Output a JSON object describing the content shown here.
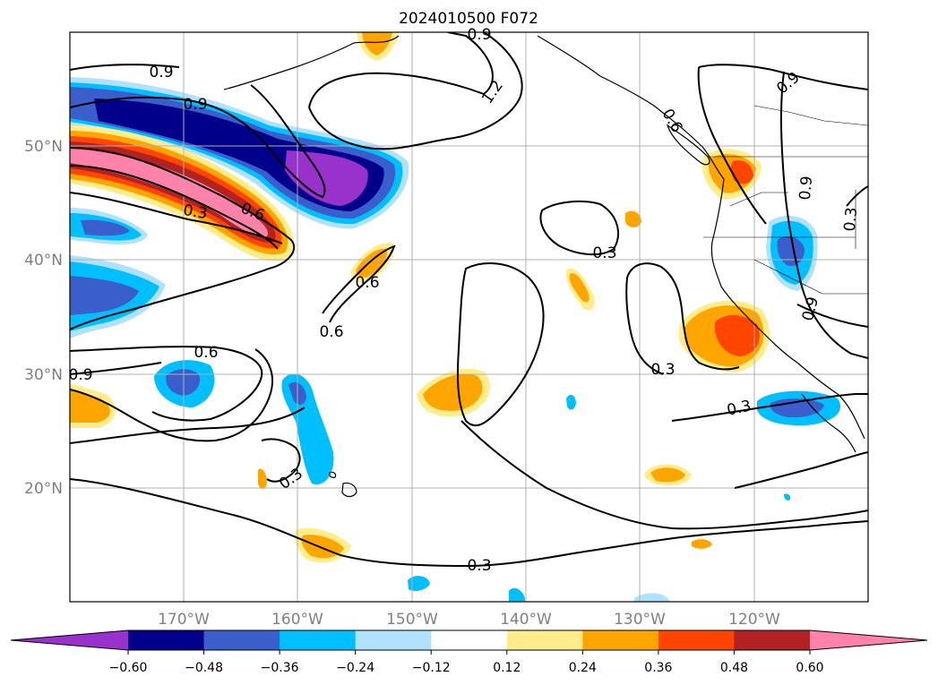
{
  "title": "2024010500 F072",
  "map": {
    "lat_labels": [
      "50°N",
      "40°N",
      "30°N",
      "20°N"
    ],
    "lon_labels": [
      "170°W",
      "160°W",
      "150°W",
      "140°W",
      "130°W",
      "120°W"
    ],
    "extent": {
      "lon": [
        -180,
        -110
      ],
      "lat": [
        10,
        60
      ]
    },
    "gridlines": true,
    "contour_labels": [
      "0.9",
      "0.9",
      "1.2",
      "0.9",
      "0.6",
      "0.3",
      "0.6",
      "0.6",
      "0.6",
      "0.6",
      "0.9",
      "0.3",
      "0.3",
      "0.3",
      "0.3",
      "0.3",
      "0.9",
      "0.9",
      "0.9",
      "0.3"
    ]
  },
  "colorbar": {
    "ticks": [
      "−0.60",
      "−0.48",
      "−0.36",
      "−0.24",
      "−0.12",
      "0.12",
      "0.24",
      "0.36",
      "0.48",
      "0.60"
    ],
    "colors": [
      "#9932cc",
      "#00008b",
      "#3a5fcd",
      "#00bfff",
      "#b0e2ff",
      "#ffffff",
      "#ffec8b",
      "#ffa500",
      "#ff4500",
      "#b22222",
      "#ff82ab"
    ]
  },
  "colors": {
    "purple": "#9932cc",
    "navy": "#00008b",
    "blue": "#3a5fcd",
    "cyan": "#00bfff",
    "lightblue": "#b0e2ff",
    "lightyellow": "#ffec8b",
    "orange": "#ffa500",
    "red": "#ff4500",
    "firebrick": "#b22222",
    "pink": "#ff82ab"
  }
}
